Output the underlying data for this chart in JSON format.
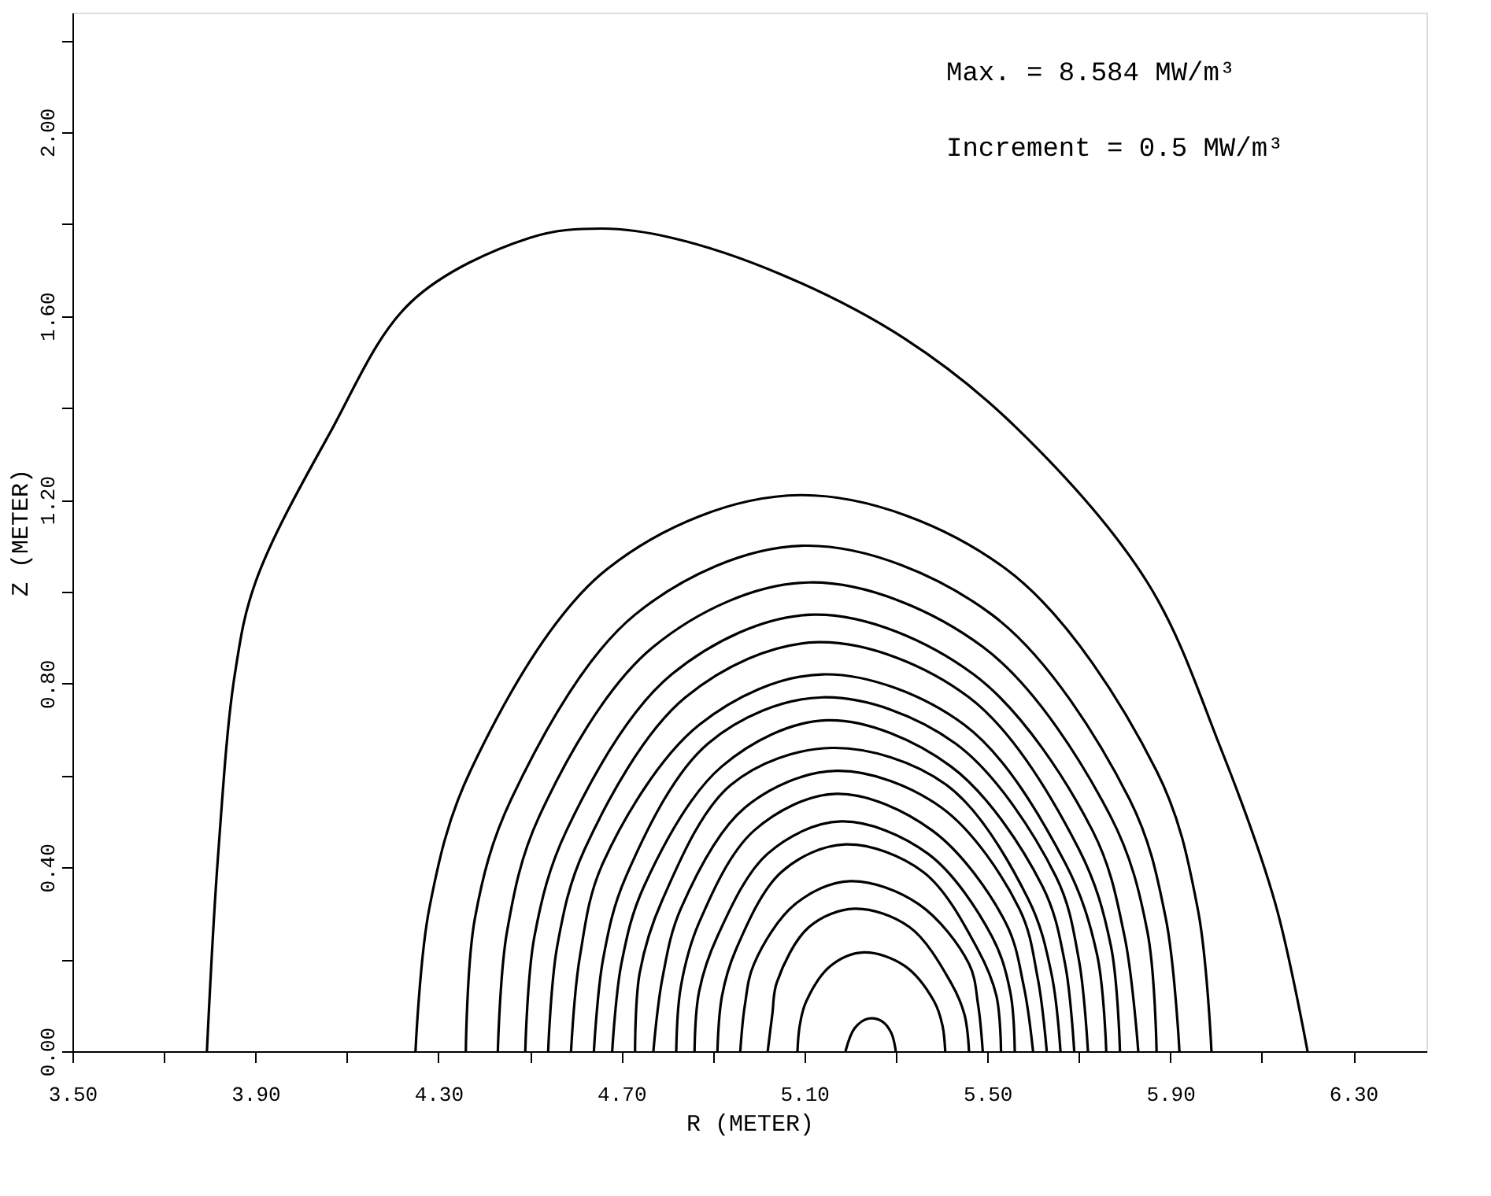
{
  "chart_data": {
    "type": "line",
    "xlabel": "R  (METER)",
    "ylabel": "Z  (METER)",
    "annotations": [
      "Max. = 8.584 MW/m³",
      "Increment = 0.5 MW/m³"
    ],
    "xlim": [
      3.5,
      6.46
    ],
    "ylim": [
      0,
      2.26
    ],
    "xticks": [
      {
        "value": 3.5,
        "label": "3.50"
      },
      {
        "value": 3.7,
        "label": null
      },
      {
        "value": 3.9,
        "label": "3.90"
      },
      {
        "value": 4.1,
        "label": null
      },
      {
        "value": 4.3,
        "label": "4.30"
      },
      {
        "value": 4.5,
        "label": null
      },
      {
        "value": 4.7,
        "label": "4.70"
      },
      {
        "value": 4.9,
        "label": null
      },
      {
        "value": 5.1,
        "label": "5.10"
      },
      {
        "value": 5.3,
        "label": null
      },
      {
        "value": 5.5,
        "label": "5.50"
      },
      {
        "value": 5.7,
        "label": null
      },
      {
        "value": 5.9,
        "label": "5.90"
      },
      {
        "value": 6.1,
        "label": null
      },
      {
        "value": 6.3,
        "label": "6.30"
      }
    ],
    "yticks": [
      {
        "value": 0,
        "label": "0.00"
      },
      {
        "value": 0.2,
        "label": null
      },
      {
        "value": 0.4,
        "label": "0.40"
      },
      {
        "value": 0.6,
        "label": null
      },
      {
        "value": 0.8,
        "label": "0.80"
      },
      {
        "value": 1.0,
        "label": null
      },
      {
        "value": 1.2,
        "label": "1.20"
      },
      {
        "value": 1.4,
        "label": null
      },
      {
        "value": 1.6,
        "label": "1.60"
      },
      {
        "value": 1.8,
        "label": null
      },
      {
        "value": 2.0,
        "label": "2.00"
      },
      {
        "value": 2.2,
        "label": null
      }
    ],
    "grid": false,
    "legend": false,
    "marker": "none",
    "line_style": "solid",
    "series": [
      {
        "color": "#000000",
        "x": [
          3.794,
          3.818,
          3.855,
          3.9,
          4.06,
          4.24,
          4.5,
          4.66,
          4.81,
          5.05,
          5.32,
          5.56,
          5.85,
          6.01,
          6.13,
          6.2
        ],
        "values": [
          0,
          0.42,
          0.82,
          1.02,
          1.34,
          1.63,
          1.77,
          1.79,
          1.77,
          1.69,
          1.55,
          1.36,
          1.02,
          0.66,
          0.32,
          0
        ]
      },
      {
        "color": "#000000",
        "x": [
          4.25,
          4.28,
          4.37,
          4.67,
          5.09,
          5.54,
          5.87,
          5.96,
          5.99
        ],
        "values": [
          0,
          0.31,
          0.61,
          1.05,
          1.21,
          1.05,
          0.61,
          0.31,
          0
        ]
      },
      {
        "color": "#000000",
        "x": [
          4.36,
          4.38,
          4.46,
          4.73,
          5.1,
          5.51,
          5.81,
          5.89,
          5.92
        ],
        "values": [
          0,
          0.29,
          0.55,
          0.95,
          1.1,
          0.95,
          0.55,
          0.29,
          0
        ]
      },
      {
        "color": "#000000",
        "x": [
          4.43,
          4.45,
          4.52,
          4.77,
          5.11,
          5.49,
          5.77,
          5.85,
          5.87
        ],
        "values": [
          0,
          0.26,
          0.51,
          0.88,
          1.02,
          0.88,
          0.51,
          0.26,
          0
        ]
      },
      {
        "color": "#000000",
        "x": [
          4.49,
          4.51,
          4.58,
          4.81,
          5.12,
          5.47,
          5.73,
          5.8,
          5.83
        ],
        "values": [
          0,
          0.25,
          0.48,
          0.82,
          0.95,
          0.82,
          0.48,
          0.25,
          0
        ]
      },
      {
        "color": "#000000",
        "x": [
          4.54,
          4.56,
          4.62,
          4.84,
          5.13,
          5.46,
          5.7,
          5.77,
          5.79
        ],
        "values": [
          0,
          0.23,
          0.44,
          0.77,
          0.89,
          0.77,
          0.44,
          0.23,
          0
        ]
      },
      {
        "color": "#000000",
        "x": [
          4.59,
          4.61,
          4.66,
          4.87,
          5.14,
          5.45,
          5.67,
          5.74,
          5.76
        ],
        "values": [
          0,
          0.21,
          0.41,
          0.71,
          0.82,
          0.71,
          0.41,
          0.21,
          0
        ]
      },
      {
        "color": "#000000",
        "x": [
          4.64,
          4.66,
          4.71,
          4.89,
          5.14,
          5.43,
          5.65,
          5.7,
          5.72
        ],
        "values": [
          0,
          0.2,
          0.38,
          0.67,
          0.77,
          0.67,
          0.38,
          0.2,
          0
        ]
      },
      {
        "color": "#000000",
        "x": [
          4.68,
          4.7,
          4.75,
          4.92,
          5.15,
          5.42,
          5.62,
          5.67,
          5.69
        ],
        "values": [
          0,
          0.19,
          0.36,
          0.62,
          0.72,
          0.62,
          0.36,
          0.19,
          0
        ]
      },
      {
        "color": "#000000",
        "x": [
          4.73,
          4.74,
          4.79,
          4.94,
          5.16,
          5.41,
          5.59,
          5.64,
          5.66
        ],
        "values": [
          0,
          0.17,
          0.33,
          0.58,
          0.66,
          0.58,
          0.33,
          0.17,
          0
        ]
      },
      {
        "color": "#000000",
        "x": [
          4.77,
          4.79,
          4.83,
          4.97,
          5.17,
          5.4,
          5.57,
          5.61,
          5.63
        ],
        "values": [
          0,
          0.16,
          0.31,
          0.53,
          0.61,
          0.53,
          0.31,
          0.16,
          0
        ]
      },
      {
        "color": "#000000",
        "x": [
          4.82,
          4.83,
          4.87,
          4.99,
          5.17,
          5.38,
          5.54,
          5.58,
          5.6
        ],
        "values": [
          0,
          0.14,
          0.28,
          0.48,
          0.56,
          0.48,
          0.28,
          0.14,
          0
        ]
      },
      {
        "color": "#000000",
        "x": [
          4.86,
          4.87,
          4.91,
          5.02,
          5.18,
          5.37,
          5.51,
          5.55,
          5.56
        ],
        "values": [
          0,
          0.13,
          0.25,
          0.43,
          0.5,
          0.43,
          0.25,
          0.13,
          0
        ]
      },
      {
        "color": "#000000",
        "x": [
          4.91,
          4.92,
          4.95,
          5.05,
          5.19,
          5.36,
          5.48,
          5.52,
          5.53
        ],
        "values": [
          0,
          0.12,
          0.22,
          0.39,
          0.45,
          0.39,
          0.22,
          0.12,
          0
        ]
      },
      {
        "color": "#000000",
        "x": [
          4.96,
          4.97,
          4.99,
          5.08,
          5.2,
          5.35,
          5.46,
          5.48,
          5.49
        ],
        "values": [
          0,
          0.1,
          0.19,
          0.32,
          0.37,
          0.32,
          0.19,
          0.1,
          0
        ]
      },
      {
        "color": "#000000",
        "x": [
          5.02,
          5.03,
          5.04,
          5.11,
          5.21,
          5.33,
          5.42,
          5.45,
          5.46
        ],
        "values": [
          0,
          0.08,
          0.15,
          0.27,
          0.31,
          0.27,
          0.15,
          0.08,
          0
        ]
      },
      {
        "color": "#000000",
        "x": [
          5.085,
          5.09,
          5.104,
          5.158,
          5.23,
          5.319,
          5.384,
          5.402,
          5.408
        ],
        "values": [
          0,
          0.056,
          0.108,
          0.186,
          0.215,
          0.186,
          0.108,
          0.056,
          0
        ]
      },
      {
        "color": "#000000",
        "x": [
          5.19,
          5.21,
          5.24,
          5.27,
          5.29,
          5.3
        ],
        "values": [
          0,
          0.05,
          0.071,
          0.065,
          0.04,
          0
        ]
      }
    ]
  }
}
